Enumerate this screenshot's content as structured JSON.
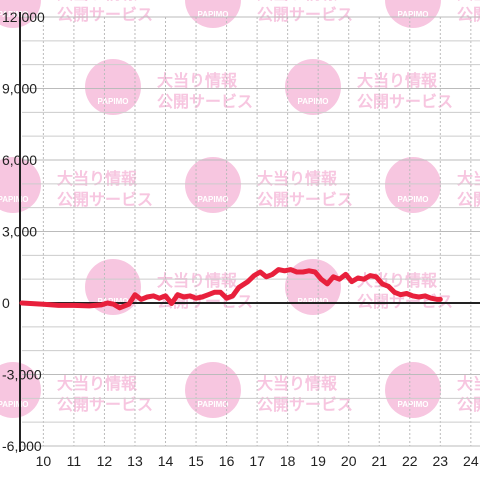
{
  "watermark": {
    "line1": "大当り情報",
    "line2": "公開サービス",
    "logo": "PAPIMO",
    "color": "#f7c6e0"
  },
  "chart_data": {
    "type": "line",
    "title": "",
    "xlabel": "",
    "ylabel": "",
    "xlim": [
      9.3,
      24.3
    ],
    "ylim": [
      -6000,
      12000
    ],
    "x_ticks": [
      10,
      11,
      12,
      13,
      14,
      15,
      16,
      17,
      18,
      19,
      20,
      21,
      22,
      23,
      24
    ],
    "y_ticks": [
      {
        "value": 12000,
        "label": "12,000"
      },
      {
        "value": 9000,
        "label": "9,000"
      },
      {
        "value": 6000,
        "label": "6,000"
      },
      {
        "value": 3000,
        "label": "3,000"
      },
      {
        "value": 0,
        "label": "0"
      },
      {
        "value": -3000,
        "label": "-3,000"
      },
      {
        "value": -6000,
        "label": "-6,000"
      }
    ],
    "grid": true,
    "colors": {
      "line": "#e8203c",
      "axis": "#222222",
      "grid_major": "#cccccc",
      "grid_minor": "#bbbbbb",
      "background": "#ffffff"
    },
    "series": [
      {
        "x": [
          9.3,
          10.0,
          10.5,
          11.0,
          11.5,
          11.9,
          12.1,
          12.3,
          12.5,
          12.8,
          13.0,
          13.2,
          13.4,
          13.6,
          13.8,
          14.0,
          14.2,
          14.4,
          14.6,
          14.8,
          15.0,
          15.2,
          15.4,
          15.6,
          15.8,
          16.0,
          16.2,
          16.4,
          16.7,
          16.9,
          17.1,
          17.3,
          17.5,
          17.7,
          17.9,
          18.1,
          18.3,
          18.5,
          18.7,
          18.9,
          19.1,
          19.3,
          19.5,
          19.7,
          19.9,
          20.1,
          20.3,
          20.5,
          20.7,
          20.9,
          21.1,
          21.3,
          21.5,
          21.7,
          21.9,
          22.1,
          22.3,
          22.5,
          22.7,
          22.9,
          23.0
        ],
        "y": [
          0,
          -50,
          -100,
          -100,
          -120,
          -80,
          0,
          -50,
          -200,
          -50,
          350,
          150,
          250,
          300,
          200,
          300,
          -20,
          350,
          250,
          300,
          200,
          250,
          350,
          450,
          450,
          200,
          300,
          650,
          900,
          1150,
          1300,
          1100,
          1200,
          1400,
          1350,
          1400,
          1300,
          1300,
          1350,
          1300,
          1000,
          800,
          1100,
          1000,
          1200,
          900,
          1050,
          1000,
          1150,
          1100,
          800,
          700,
          450,
          350,
          400,
          300,
          250,
          300,
          200,
          150,
          150
        ]
      }
    ]
  }
}
